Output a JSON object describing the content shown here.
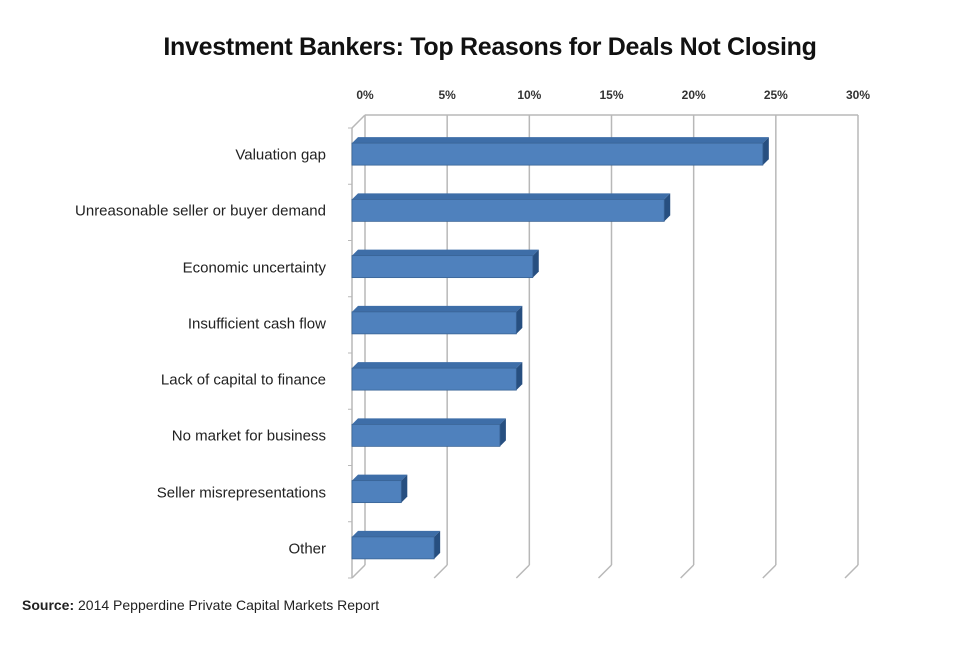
{
  "chart_data": {
    "type": "bar",
    "orientation": "horizontal",
    "style": "3d",
    "title": "Investment Bankers: Top Reasons for Deals Not Closing",
    "categories": [
      "Valuation gap",
      "Unreasonable seller or buyer demand",
      "Economic uncertainty",
      "Insufficient cash flow",
      "Lack of capital to finance",
      "No market for business",
      "Seller misrepresentations",
      "Other"
    ],
    "values": [
      25,
      19,
      11,
      10,
      10,
      9,
      3,
      5
    ],
    "unit": "%",
    "xlabel": "",
    "ylabel": "",
    "xlim": [
      0,
      30
    ],
    "xticks": [
      "0%",
      "5%",
      "10%",
      "15%",
      "20%",
      "25%",
      "30%"
    ],
    "x_axis_position": "top",
    "grid": true,
    "legend": null,
    "bar_color": "#4F81BD"
  },
  "title": "Investment Bankers: Top Reasons for Deals Not Closing",
  "source": {
    "label": "Source:",
    "text": " 2014  Pepperdine Private Capital Markets Report"
  }
}
